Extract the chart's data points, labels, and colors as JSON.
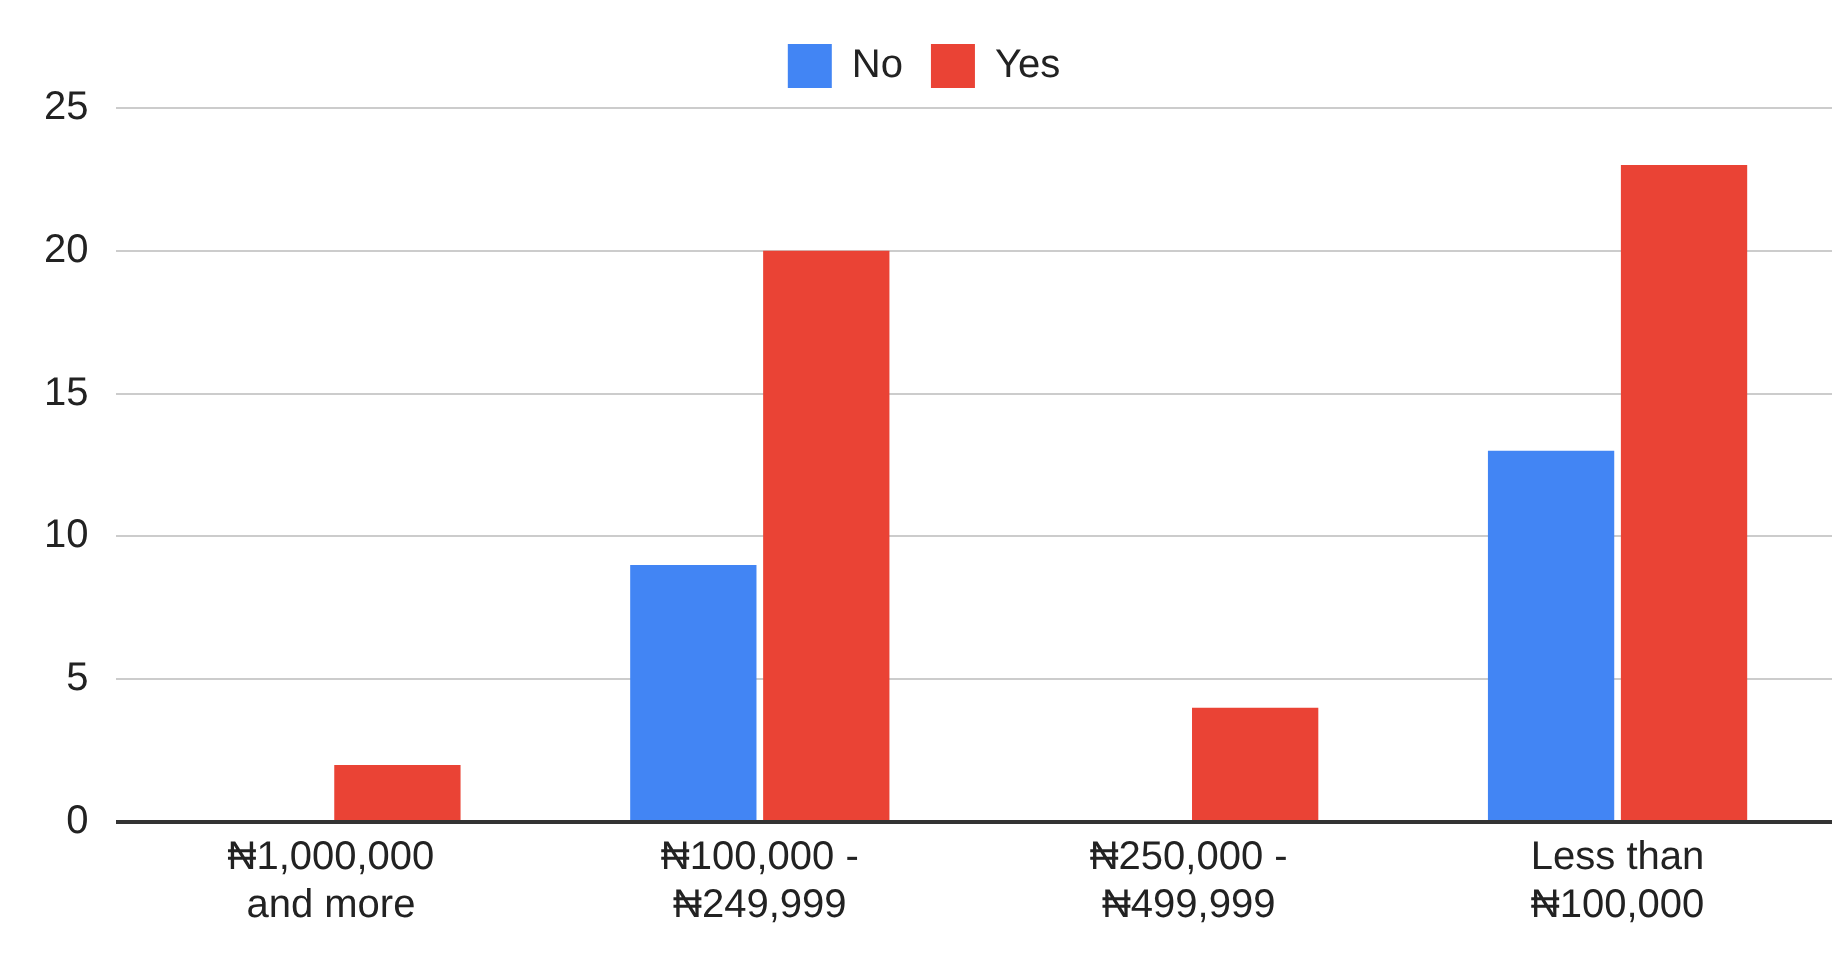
{
  "chart_data": {
    "type": "bar",
    "categories": [
      "₦1,000,000 and more",
      "₦100,000 - ₦249,999",
      "₦250,000 - ₦499,999",
      "Less than ₦100,000"
    ],
    "series": [
      {
        "name": "No",
        "color": "#4285f4",
        "values": [
          0,
          9,
          0,
          13
        ]
      },
      {
        "name": "Yes",
        "color": "#ea4335",
        "values": [
          2,
          20,
          4,
          23
        ]
      }
    ],
    "ylim": [
      0,
      25
    ],
    "yticks": [
      0,
      5,
      10,
      15,
      20,
      25
    ],
    "grid": "y",
    "legend": "top"
  }
}
